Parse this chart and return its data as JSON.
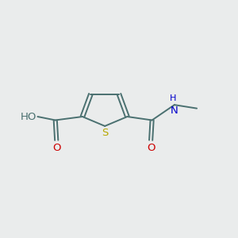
{
  "background_color": "#eaecec",
  "bond_color": "#4a7070",
  "atom_colors": {
    "S": "#b8a800",
    "O": "#cc0000",
    "H_teal": "#4a7070",
    "N": "#0000cc"
  },
  "fig_width": 3.0,
  "fig_height": 3.0,
  "dpi": 100
}
